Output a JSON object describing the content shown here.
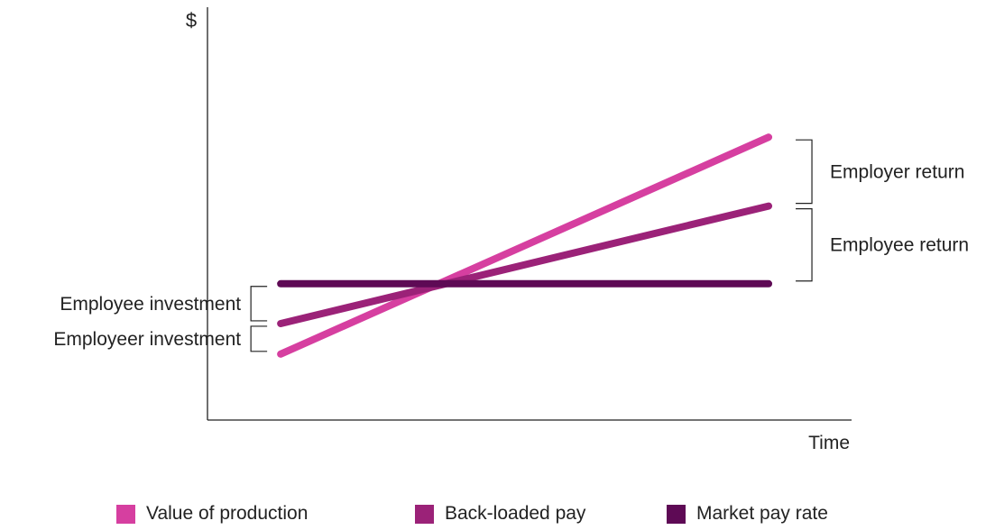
{
  "chart_data": {
    "type": "line",
    "ylabel": "$",
    "xlabel": "Time",
    "x": [
      0,
      1
    ],
    "xlim": [
      -0.15,
      1.17
    ],
    "ylim": [
      -0.27,
      1.42
    ],
    "grid": false,
    "legend_position": "bottom",
    "series": [
      {
        "name": "Value of production",
        "values": [
          0.0,
          0.888
        ],
        "color": "#d63fa0"
      },
      {
        "name": "Back-loaded pay",
        "values": [
          0.125,
          0.606
        ],
        "color": "#9b2278"
      },
      {
        "name": "Market pay rate",
        "values": [
          0.288,
          0.288
        ],
        "color": "#5e0a55"
      }
    ],
    "annotations": [
      {
        "text": "Employer return",
        "side": "right",
        "from": 0.606,
        "to": 0.888
      },
      {
        "text": "Employee return",
        "side": "right",
        "from": 0.288,
        "to": 0.606
      },
      {
        "text": "Employee investment",
        "side": "left",
        "from": 0.125,
        "to": 0.288
      },
      {
        "text": "Employeer investment",
        "side": "left",
        "from": 0.0,
        "to": 0.125
      }
    ]
  }
}
